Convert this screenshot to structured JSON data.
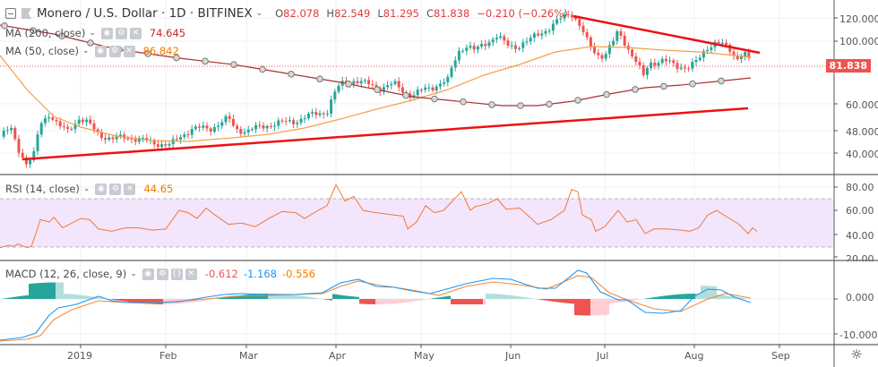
{
  "header": {
    "symbol": "Monero / U.S. Dollar",
    "interval": "1D",
    "exchange": "BITFINEX",
    "title_full": "Monero / U.S. Dollar · 1D · BITFINEX",
    "ohlc": {
      "o_label": "O",
      "o": "82.078",
      "h_label": "H",
      "h": "82.549",
      "l_label": "L",
      "l": "81.295",
      "c_label": "C",
      "c": "81.838",
      "change": "−0.210 (−0.26%)"
    }
  },
  "indicators": {
    "ma200": {
      "label": "MA (200, close)",
      "value": "74.645",
      "color": "#a52a2a"
    },
    "ma50": {
      "label": "MA (50, close)",
      "value": "86.842",
      "color": "#f57c00"
    },
    "rsi": {
      "label": "RSI (14, close)",
      "value": "44.65",
      "color": "#f57c00"
    },
    "macd": {
      "label": "MACD (12, 26, close, 9)",
      "hist": "-0.612",
      "macd": "-1.168",
      "signal": "-0.556",
      "hist_color": "#ef5350",
      "macd_color": "#2196f3",
      "signal_color": "#f57c00"
    }
  },
  "price_axis": {
    "ticks": [
      "120.000",
      "100.000",
      "60.000",
      "48.000",
      "40.000"
    ],
    "current": "81.838",
    "current_color": "#ef5350"
  },
  "rsi_axis": {
    "ticks": [
      "80.00",
      "60.00",
      "40.00",
      "20.00"
    ]
  },
  "macd_axis": {
    "ticks": [
      "0.000",
      "-10.000"
    ]
  },
  "time_axis": {
    "ticks": [
      "2019",
      "Feb",
      "Mar",
      "Apr",
      "May",
      "Jun",
      "Jul",
      "Aug",
      "Sep"
    ]
  },
  "icons": {
    "settings": "gear-icon",
    "eye": "eye-icon",
    "gear": "gear-icon",
    "close": "close-icon",
    "source": "braces-icon"
  },
  "chart_data": [
    {
      "type": "candlestick",
      "title": "Monero / U.S. Dollar · 1D · BITFINEX",
      "y_scale": "log",
      "ylim": [
        36,
        128
      ],
      "x_ticks": [
        "2019",
        "Feb",
        "Mar",
        "Apr",
        "May",
        "Jun",
        "Jul",
        "Aug",
        "Sep"
      ],
      "y_ticks": [
        40,
        48,
        60,
        100,
        120
      ],
      "approx_close_by_month": {
        "Dec-2018": 45,
        "Jan": 47,
        "Feb": 46,
        "Mar": 51,
        "Apr": 69,
        "May": 95,
        "Jun": 115,
        "Jul": 80,
        "Aug": 82
      },
      "last": {
        "open": 82.078,
        "high": 82.549,
        "low": 81.295,
        "close": 81.838,
        "change": -0.21,
        "change_pct": -0.26
      },
      "overlays": [
        {
          "name": "MA (200, close)",
          "last": 74.645
        },
        {
          "name": "MA (50, close)",
          "last": 86.842
        },
        {
          "name": "Descending resistance trendline",
          "from": {
            "date": "Jun-24",
            "price": 121
          },
          "to": {
            "date": "Aug-26",
            "price": 92
          }
        },
        {
          "name": "Ascending support trendline",
          "from": {
            "date": "Dec-16",
            "price": 38
          },
          "to": {
            "date": "Aug-26",
            "price": 59
          }
        }
      ]
    },
    {
      "type": "line",
      "title": "RSI (14, close)",
      "ylim": [
        20,
        85
      ],
      "bands": [
        30,
        70
      ],
      "last": 44.65,
      "approx_peaks": {
        "Apr-02": 82,
        "Jun-21": 78
      }
    },
    {
      "type": "line+bar",
      "title": "MACD (12, 26, close, 9)",
      "series": [
        {
          "name": "histogram",
          "last": -0.612
        },
        {
          "name": "MACD",
          "last": -1.168
        },
        {
          "name": "signal",
          "last": -0.556
        }
      ],
      "ylim": [
        -12,
        6
      ]
    }
  ]
}
